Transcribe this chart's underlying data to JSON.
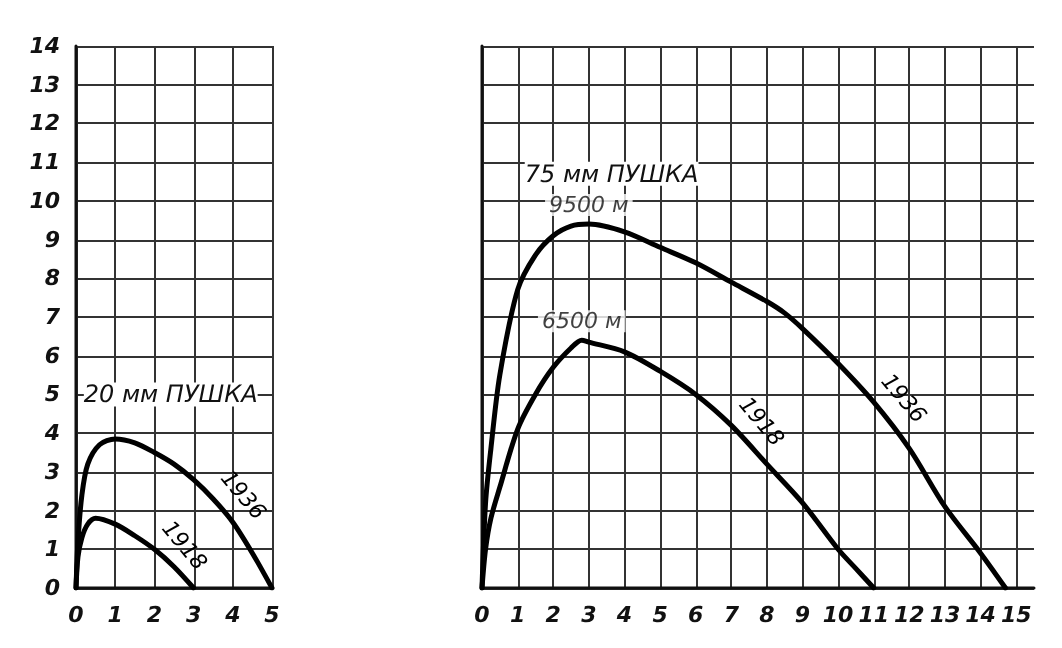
{
  "chart_data": [
    {
      "type": "line",
      "title": "20 мм ПУШКА",
      "xlim": [
        0,
        5
      ],
      "ylim": [
        0,
        14
      ],
      "xticks": [
        0,
        1,
        2,
        3,
        4,
        5
      ],
      "yticks": [
        0,
        1,
        2,
        3,
        4,
        5,
        6,
        7,
        8,
        9,
        10,
        11,
        12,
        13,
        14
      ],
      "grid": true,
      "legend": false,
      "marker": "none",
      "line_style": "solid",
      "series": [
        {
          "name": "1936",
          "color": "#000000",
          "x": [
            0,
            0.05,
            0.15,
            0.3,
            0.6,
            1,
            1.5,
            2,
            2.5,
            3,
            3.5,
            4,
            4.5,
            5
          ],
          "values": [
            0,
            1.2,
            2.4,
            3.2,
            3.7,
            3.85,
            3.75,
            3.5,
            3.2,
            2.8,
            2.3,
            1.7,
            0.9,
            0
          ]
        },
        {
          "name": "1918",
          "color": "#000000",
          "x": [
            0,
            0.05,
            0.15,
            0.3,
            0.5,
            1,
            1.5,
            2,
            2.5,
            3
          ],
          "values": [
            0,
            0.8,
            1.3,
            1.65,
            1.8,
            1.65,
            1.35,
            1.0,
            0.55,
            0
          ]
        }
      ]
    },
    {
      "type": "line",
      "xlim": [
        0,
        15.5
      ],
      "ylim": [
        0,
        14
      ],
      "xticks": [
        0,
        1,
        2,
        3,
        4,
        5,
        6,
        7,
        8,
        9,
        10,
        11,
        12,
        13,
        14,
        15
      ],
      "yticks": [
        0,
        1,
        2,
        3,
        4,
        5,
        6,
        7,
        8,
        9,
        10,
        11,
        12,
        13,
        14
      ],
      "grid": true,
      "legend": false,
      "marker": "none",
      "line_style": "solid",
      "tick_labels": "x",
      "annotations": [
        "75 мм ПУШКА",
        {
          "text": "9500 м",
          "x": 3,
          "y": 9.4
        },
        {
          "text": "6500 м",
          "x": 2.8,
          "y": 6.4
        }
      ],
      "series": [
        {
          "name": "1936",
          "color": "#000000",
          "x": [
            0,
            0.1,
            0.25,
            0.5,
            1,
            1.5,
            2,
            2.5,
            3,
            4,
            5,
            6,
            7,
            8,
            8.5,
            9,
            10,
            11,
            12,
            13,
            14,
            14.7
          ],
          "values": [
            0,
            2.2,
            3.6,
            5.5,
            7.7,
            8.6,
            9.1,
            9.35,
            9.4,
            9.2,
            8.8,
            8.4,
            7.9,
            7.4,
            7.1,
            6.7,
            5.8,
            4.8,
            3.6,
            2.1,
            0.9,
            0
          ]
        },
        {
          "name": "1918",
          "color": "#000000",
          "x": [
            0,
            0.1,
            0.25,
            0.5,
            1,
            1.5,
            2,
            2.5,
            2.8,
            3,
            4,
            5,
            6,
            7,
            8,
            9,
            10,
            10.5,
            11
          ],
          "values": [
            0,
            1.0,
            1.8,
            2.6,
            4.1,
            5.0,
            5.7,
            6.2,
            6.4,
            6.35,
            6.1,
            5.6,
            5.0,
            4.2,
            3.2,
            2.2,
            1.0,
            0.5,
            0
          ]
        }
      ]
    }
  ]
}
